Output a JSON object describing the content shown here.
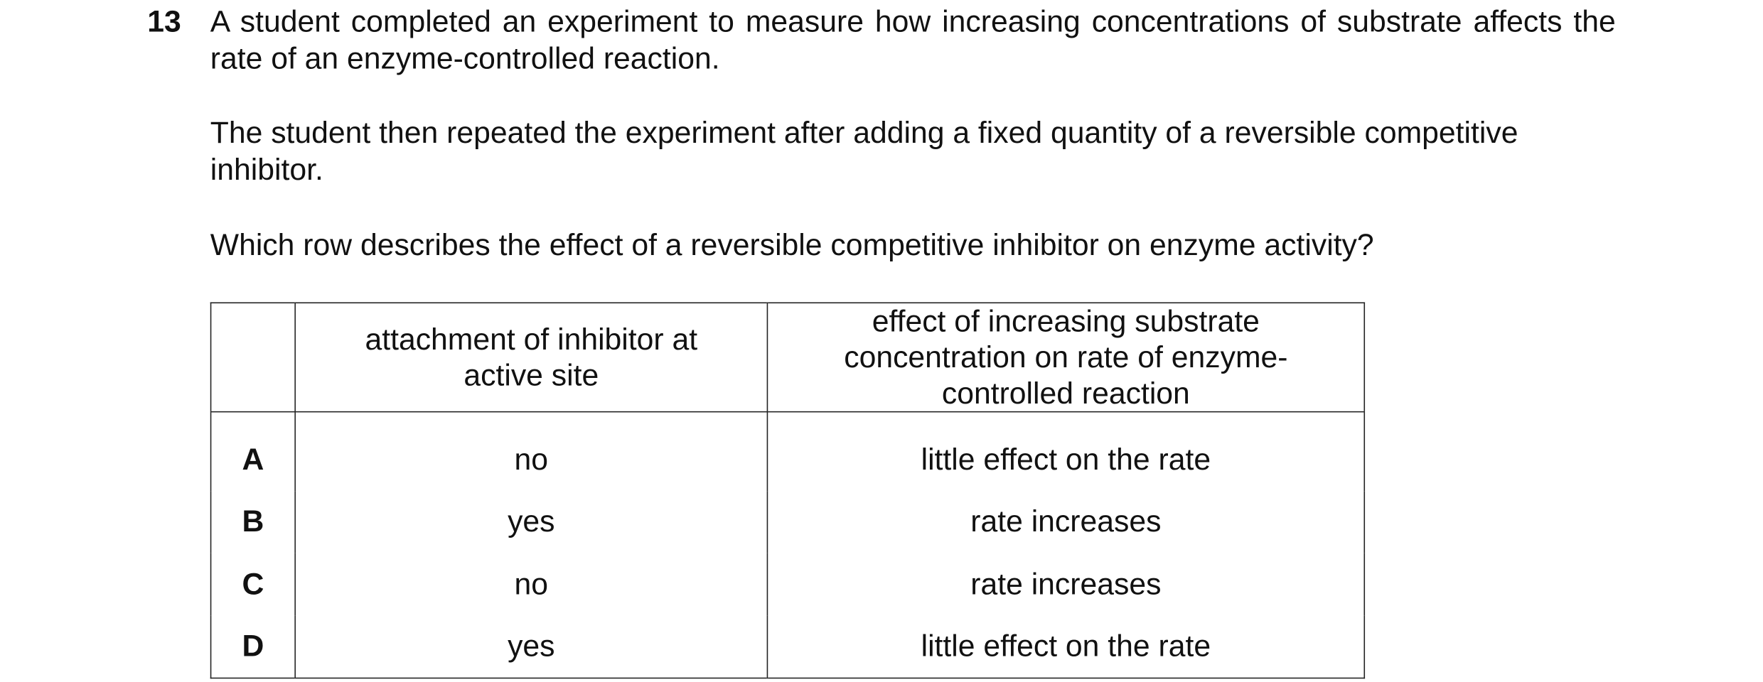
{
  "question": {
    "number": "13",
    "paragraphs": [
      "A student completed an experiment to measure how increasing concentrations of substrate affects the rate of an enzyme-controlled reaction.",
      "The student then repeated the experiment after adding a fixed quantity of a reversible competitive inhibitor.",
      "Which row describes the effect of a reversible competitive inhibitor on enzyme activity?"
    ]
  },
  "table": {
    "headers": [
      "attachment of inhibitor at active site",
      "effect of increasing substrate concentration on rate of enzyme-controlled reaction"
    ],
    "rows": [
      [
        "A",
        "no",
        "little effect on the rate"
      ],
      [
        "B",
        "yes",
        "rate increases"
      ],
      [
        "C",
        "no",
        "rate increases"
      ],
      [
        "D",
        "yes",
        "little effect on the rate"
      ]
    ]
  }
}
